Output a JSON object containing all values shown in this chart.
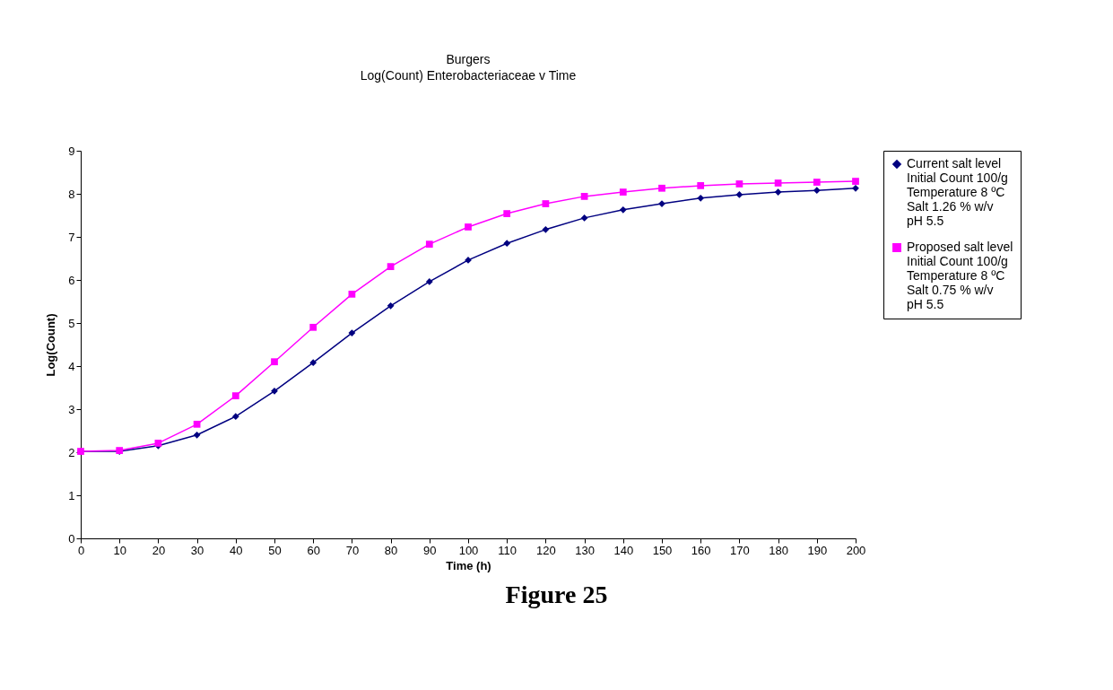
{
  "chart_data": {
    "type": "line",
    "title": "Burgers",
    "subtitle": "Log(Count) Enterobacteriaceae v Time",
    "xlabel": "Time (h)",
    "ylabel": "Log(Count)",
    "x": [
      0,
      10,
      20,
      30,
      40,
      50,
      60,
      70,
      80,
      90,
      100,
      110,
      120,
      130,
      140,
      150,
      160,
      170,
      180,
      190,
      200
    ],
    "series": [
      {
        "name": "Current salt level\nInitial Count 100/g\nTemperature 8 ºC\nSalt 1.26 % w/v\npH 5.5",
        "color": "#000080",
        "marker": "diamond",
        "values": [
          2.02,
          2.02,
          2.15,
          2.4,
          2.83,
          3.42,
          4.08,
          4.77,
          5.4,
          5.96,
          6.46,
          6.85,
          7.17,
          7.44,
          7.63,
          7.77,
          7.9,
          7.98,
          8.04,
          8.08,
          8.13
        ]
      },
      {
        "name": "Proposed salt level\nInitial Count 100/g\nTemperature 8 ºC\nSalt 0.75 % w/v\npH 5.5",
        "color": "#ff00ff",
        "marker": "square",
        "values": [
          2.02,
          2.04,
          2.21,
          2.65,
          3.31,
          4.1,
          4.9,
          5.67,
          6.31,
          6.83,
          7.23,
          7.54,
          7.77,
          7.94,
          8.04,
          8.13,
          8.19,
          8.23,
          8.25,
          8.27,
          8.29
        ]
      }
    ],
    "xlim": [
      0,
      200
    ],
    "xticks": [
      0,
      10,
      20,
      30,
      40,
      50,
      60,
      70,
      80,
      90,
      100,
      110,
      120,
      130,
      140,
      150,
      160,
      170,
      180,
      190,
      200
    ],
    "ylim": [
      0,
      9
    ],
    "yticks": [
      0,
      1,
      2,
      3,
      4,
      5,
      6,
      7,
      8,
      9
    ],
    "grid": false,
    "legend": "right",
    "line_style": "solid",
    "annotations": [
      "Figure 25"
    ]
  }
}
